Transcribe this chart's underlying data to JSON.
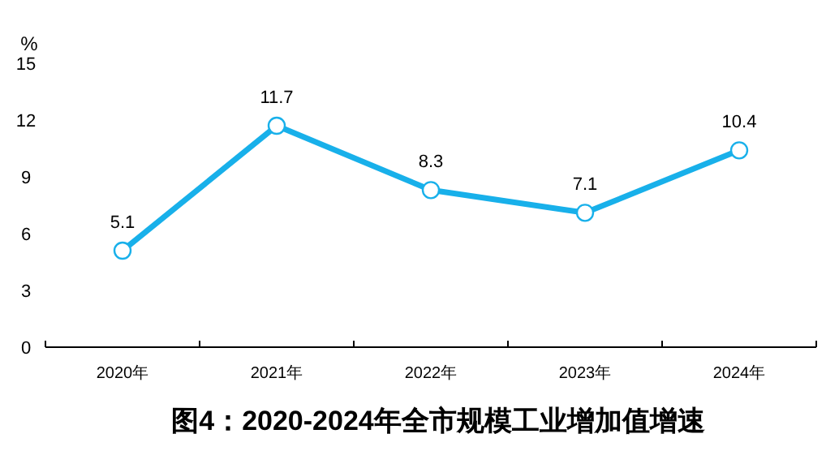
{
  "chart_data": {
    "type": "line",
    "title": "图4：2020-2024年全市规模工业增加值增速",
    "ylabel": "%",
    "categories": [
      "2020年",
      "2021年",
      "2022年",
      "2023年",
      "2024年"
    ],
    "series": [
      {
        "color": "#18b0ea",
        "values": [
          5.1,
          11.7,
          8.3,
          7.1,
          10.4
        ]
      }
    ],
    "ylim": [
      0,
      15
    ],
    "yticks": [
      0,
      3,
      6,
      9,
      12,
      15
    ],
    "data_labels": true,
    "marker": "circle",
    "grid": false
  }
}
